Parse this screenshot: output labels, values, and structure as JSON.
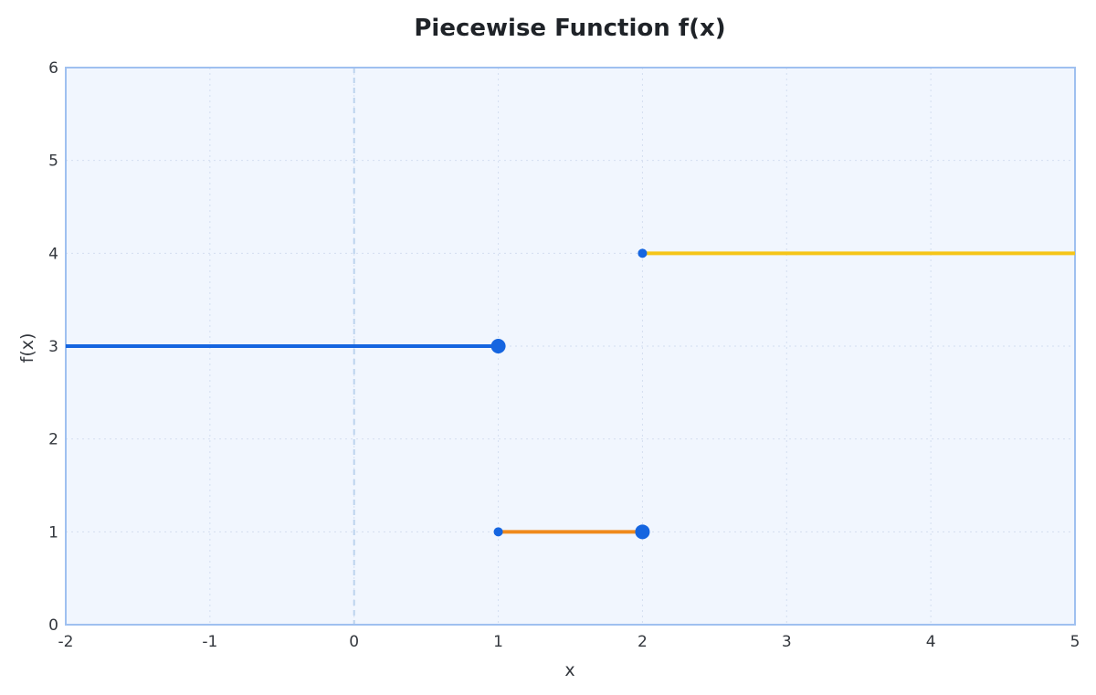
{
  "chart_data": {
    "type": "line",
    "title": "Piecewise Function f(x)",
    "xlabel": "x",
    "ylabel": "f(x)",
    "xlim": [
      -2,
      5
    ],
    "ylim": [
      0,
      6
    ],
    "x_ticks": [
      "-2",
      "-1",
      "0",
      "1",
      "2",
      "3",
      "4",
      "5"
    ],
    "y_ticks": [
      "0",
      "1",
      "2",
      "3",
      "4",
      "5",
      "6"
    ],
    "grid": true,
    "reference_lines": [
      {
        "axis": "x",
        "value": 0,
        "style": "dashed"
      }
    ],
    "series": [
      {
        "x": [
          -2,
          1
        ],
        "y": [
          3,
          3
        ],
        "color": "#1565e0"
      },
      {
        "x": [
          1,
          2
        ],
        "y": [
          1,
          1
        ],
        "color": "#ef8a1d"
      },
      {
        "x": [
          2,
          5
        ],
        "y": [
          4,
          4
        ],
        "color": "#f5c518"
      }
    ],
    "endpoints": [
      {
        "x": 1,
        "y": 3,
        "closed": true
      },
      {
        "x": 1,
        "y": 1,
        "closed": false
      },
      {
        "x": 2,
        "y": 1,
        "closed": true
      },
      {
        "x": 2,
        "y": 4,
        "closed": false
      }
    ],
    "colors": {
      "plot_background": "#f1f6fe",
      "frame": "#9fc0f0",
      "grid": "#d4def0",
      "reference_line": "#bcd3ee",
      "endpoint": "#1565e0"
    }
  }
}
